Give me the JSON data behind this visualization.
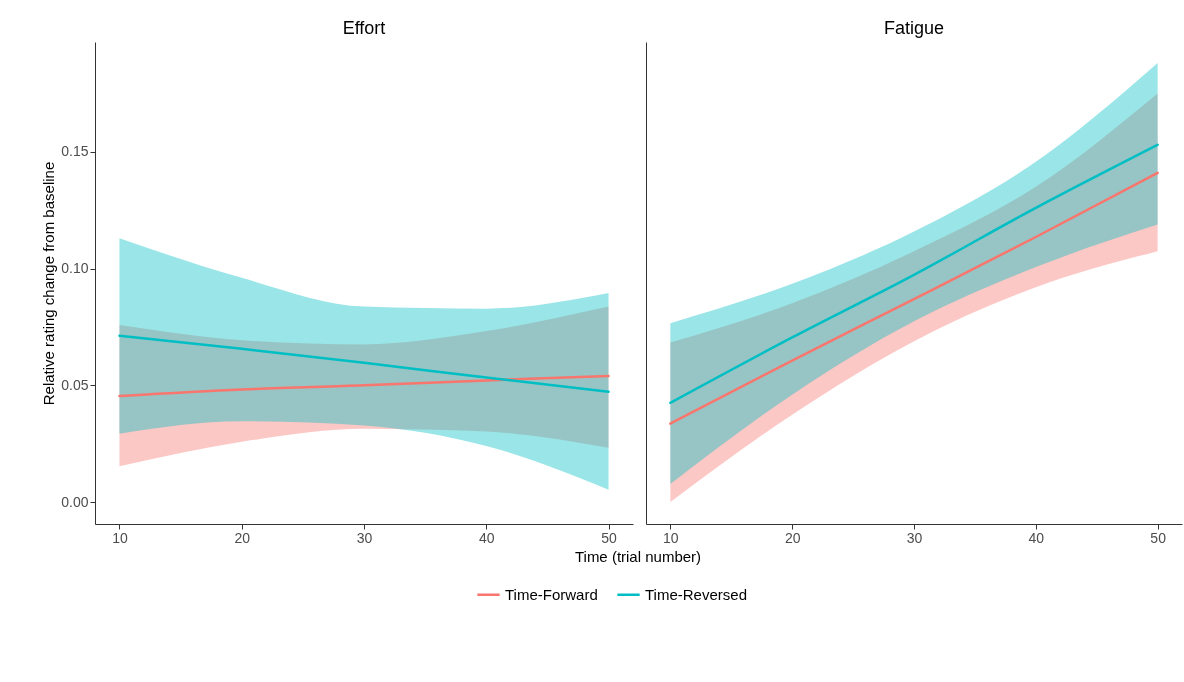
{
  "chart_data": [
    {
      "type": "line",
      "title": "Effort",
      "xlabel": "Time (trial number)",
      "ylabel": "Relative rating change from baseline",
      "legend": "bottom",
      "marker": "none",
      "x": [
        10,
        20,
        30,
        40,
        50
      ],
      "xlim": [
        8,
        52
      ],
      "xticks": [
        10,
        20,
        30,
        40,
        50
      ],
      "ylim": [
        -0.0094,
        0.197
      ],
      "yticks": [
        {
          "value": 0,
          "label": "0.00"
        },
        {
          "value": 0.05,
          "label": "0.05"
        },
        {
          "value": 0.1,
          "label": "0.10"
        },
        {
          "value": 0.15,
          "label": "0.15"
        }
      ],
      "series": [
        {
          "name": "Time-Forward",
          "color": "#f8766d",
          "values": [
            0.0454,
            0.0482,
            0.05,
            0.0521,
            0.054
          ],
          "lower": [
            0.0153,
            0.0258,
            0.0314,
            0.0302,
            0.0232
          ],
          "upper": [
            0.0758,
            0.0693,
            0.0675,
            0.0732,
            0.0837
          ]
        },
        {
          "name": "Time-Reversed",
          "color": "#00bfc4",
          "values": [
            0.0712,
            0.0656,
            0.0596,
            0.0533,
            0.0472
          ],
          "lower": [
            0.0293,
            0.0346,
            0.0328,
            0.024,
            0.0053
          ],
          "upper": [
            0.113,
            0.096,
            0.0837,
            0.0828,
            0.0895
          ]
        }
      ]
    },
    {
      "type": "line",
      "title": "Fatigue",
      "tick_labels": "x",
      "marker": "none",
      "x": [
        10,
        20,
        30,
        40,
        50
      ],
      "xlim": [
        8,
        52
      ],
      "xticks": [
        10,
        20,
        30,
        40,
        50
      ],
      "ylim": [
        -0.0094,
        0.197
      ],
      "series": [
        {
          "name": "Time-Forward",
          "color": "#f8766d",
          "values": [
            0.0336,
            0.0606,
            0.0869,
            0.1135,
            0.141
          ],
          "lower": [
            0.0,
            0.0374,
            0.0689,
            0.092,
            0.1074
          ],
          "upper": [
            0.0683,
            0.0851,
            0.1074,
            0.135,
            0.175
          ]
        },
        {
          "name": "Time-Reversed",
          "color": "#00bfc4",
          "values": [
            0.0425,
            0.0705,
            0.0973,
            0.126,
            0.153
          ],
          "lower": [
            0.0077,
            0.046,
            0.0774,
            0.1006,
            0.1188
          ],
          "upper": [
            0.0766,
            0.0935,
            0.1158,
            0.1457,
            0.188
          ]
        }
      ]
    }
  ]
}
